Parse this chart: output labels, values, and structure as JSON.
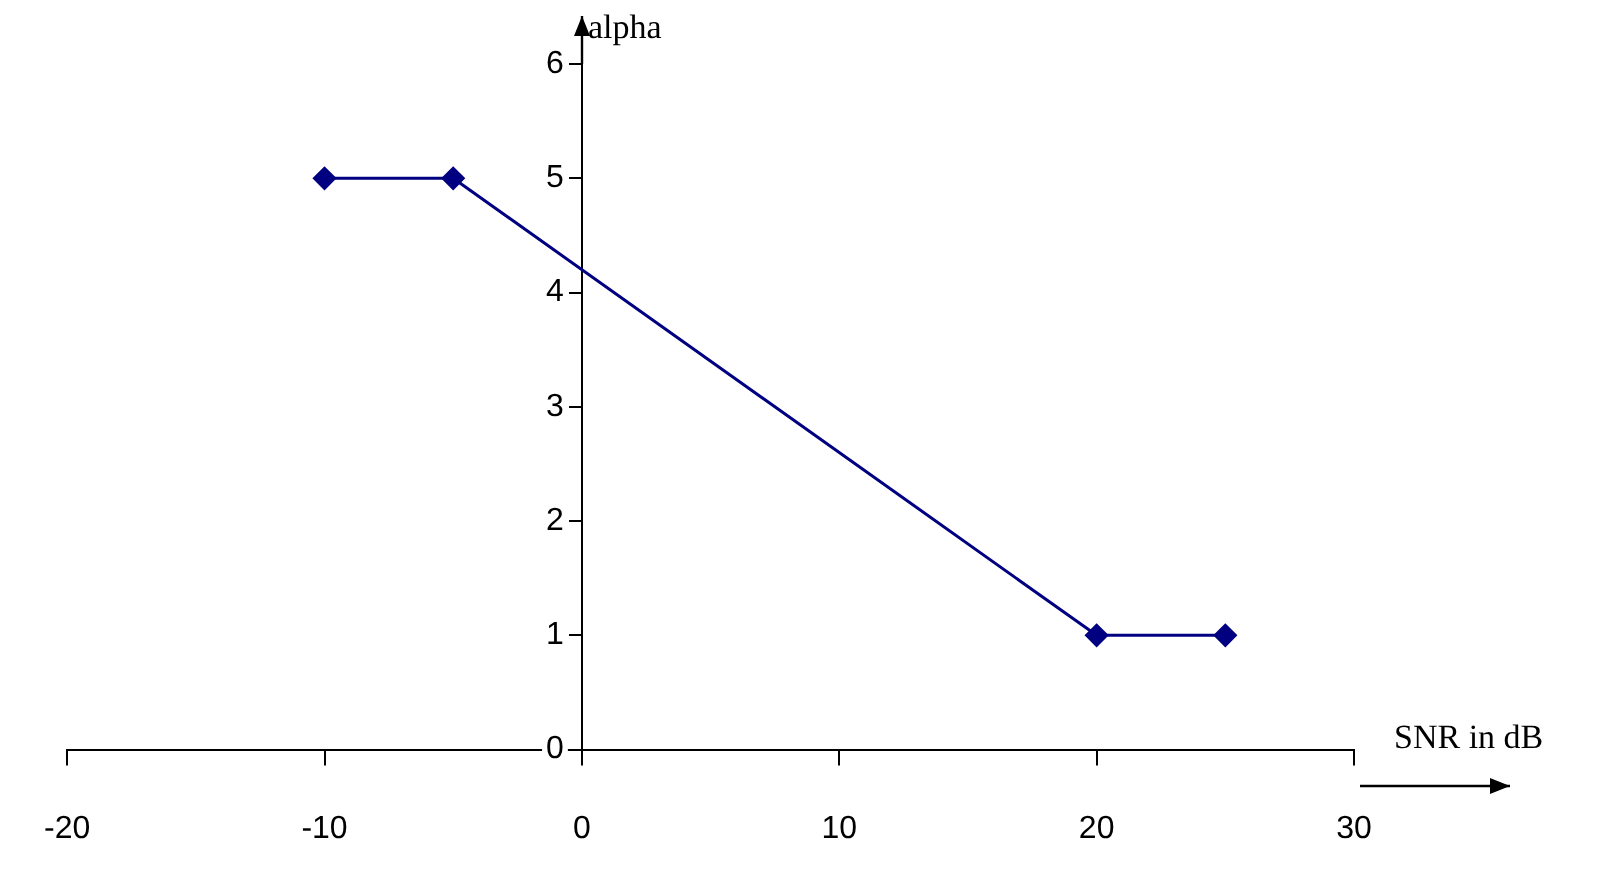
{
  "chart_data": {
    "type": "line",
    "xlabel": "SNR in dB",
    "ylabel": "alpha",
    "x": [
      -10,
      -5,
      20,
      25
    ],
    "series": [
      {
        "color": "#000080",
        "values": [
          5,
          5,
          1,
          1
        ]
      }
    ],
    "xlim": [
      -20,
      30
    ],
    "xticks": [
      -20,
      -10,
      0,
      10,
      20,
      30
    ],
    "ylim": [
      0,
      6
    ],
    "yticks": [
      0,
      1,
      2,
      3,
      4,
      5,
      6
    ],
    "grid": false,
    "legend": false,
    "marker": "diamond",
    "line_style": "solid"
  }
}
